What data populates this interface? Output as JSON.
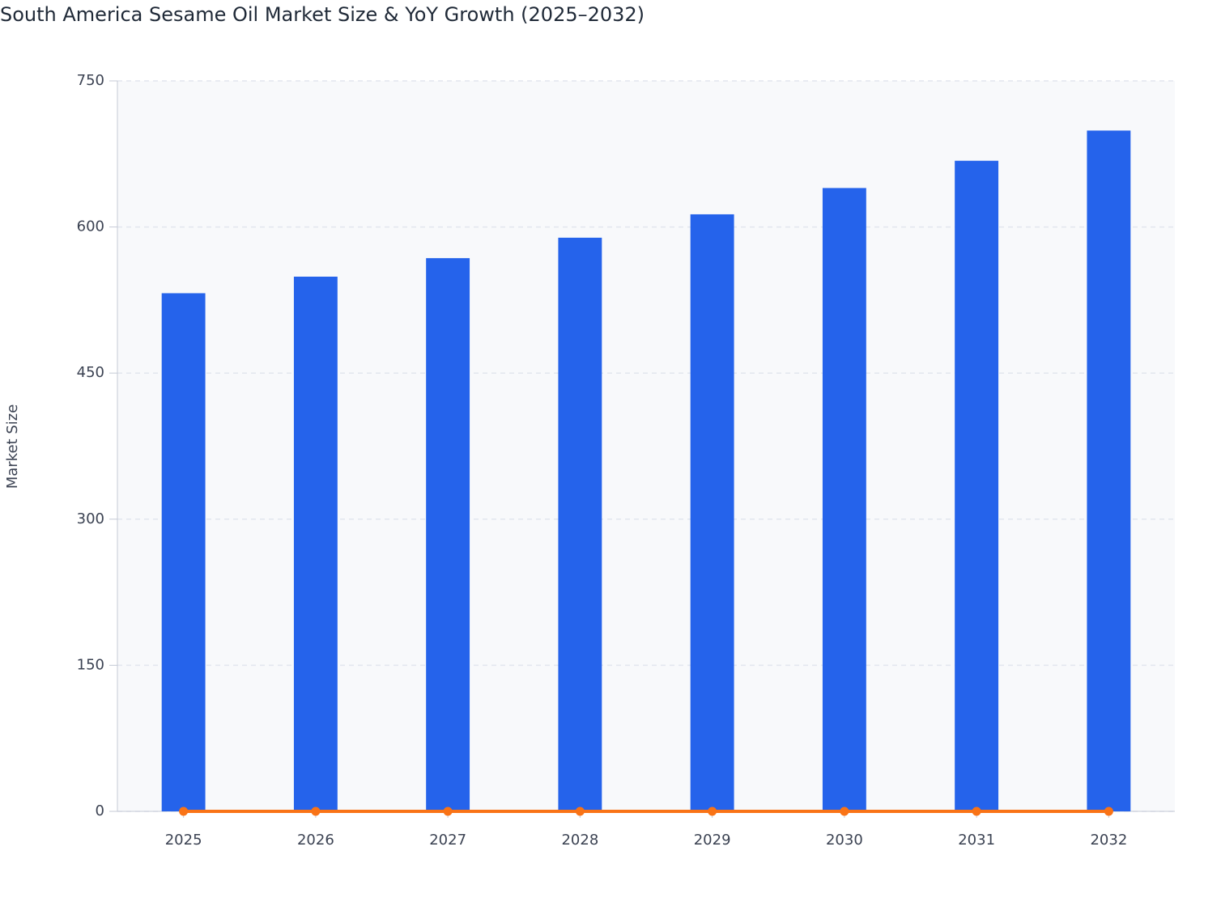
{
  "chart_data": {
    "type": "bar",
    "title": "South America Sesame Oil Market Size & YoY Growth (2025–2032)",
    "y_label": "Market Size",
    "categories": [
      "2025",
      "2026",
      "2027",
      "2028",
      "2029",
      "2030",
      "2031",
      "2032"
    ],
    "series": [
      {
        "type": "bar",
        "color": "#2563eb",
        "values": [
          532,
          549,
          568,
          589,
          613,
          640,
          668,
          699
        ]
      },
      {
        "type": "line",
        "color": "#f97316",
        "values": [
          0,
          0,
          0,
          0,
          0,
          0,
          0,
          0
        ]
      }
    ],
    "ylim": [
      0,
      750
    ],
    "yticks": [
      0,
      150,
      300,
      450,
      600,
      750
    ],
    "grid": true
  }
}
